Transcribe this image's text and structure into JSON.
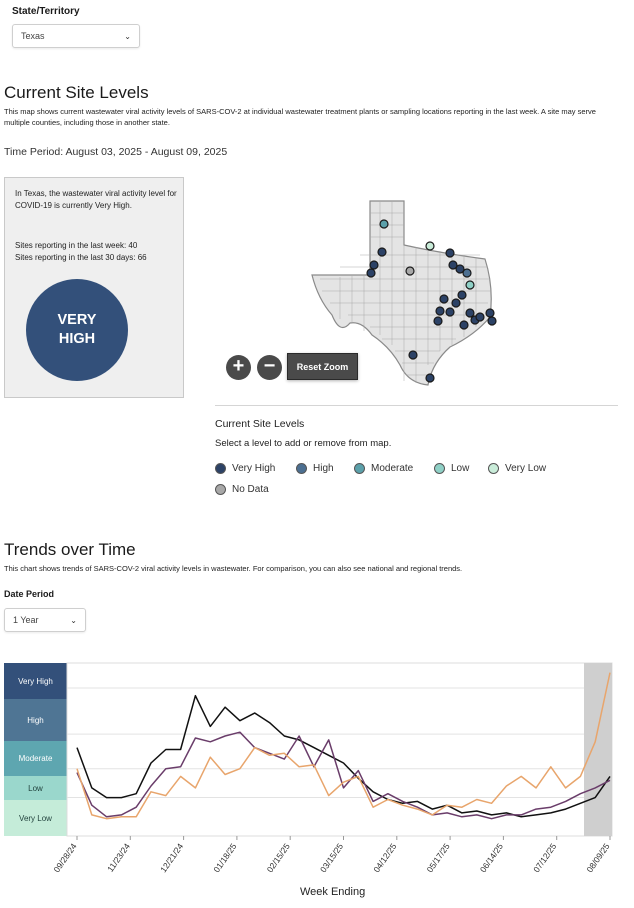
{
  "filter": {
    "label": "State/Territory",
    "selected": "Texas"
  },
  "site_levels": {
    "title": "Current Site Levels",
    "description": "This map shows current wastewater viral activity levels of SARS-COV-2 at individual wastewater treatment plants or sampling locations reporting in the last week. A site may serve multiple counties, including those in another state.",
    "time_period": "Time Period: August 03, 2025 - August 09, 2025"
  },
  "summary": {
    "text": "In Texas, the wastewater viral activity level for COVID-19 is currently Very High.",
    "sites_week": "Sites reporting in the last week: 40",
    "sites_30": "Sites reporting in the last 30 days: 66",
    "level_line1": "VERY",
    "level_line2": "HIGH",
    "level_color": "#33507a"
  },
  "map_controls": {
    "zoom_in": "+",
    "zoom_out": "−",
    "reset": "Reset Zoom"
  },
  "legend": {
    "title": "Current Site Levels",
    "subtitle": "Select a level to add or remove from map.",
    "items": [
      {
        "label": "Very High",
        "color": "#2c4266"
      },
      {
        "label": "High",
        "color": "#4c6f91"
      },
      {
        "label": "Moderate",
        "color": "#5ba0aa"
      },
      {
        "label": "Low",
        "color": "#8fd0c6"
      },
      {
        "label": "Very Low",
        "color": "#c9ecd9"
      },
      {
        "label": "No Data",
        "color": "#a8a8a8"
      }
    ]
  },
  "trends": {
    "title": "Trends over Time",
    "description": "This chart shows trends of SARS-COV-2 viral activity levels in wastewater. For comparison, you can also see national and regional trends.",
    "date_period_label": "Date Period",
    "date_period_value": "1 Year"
  },
  "chart_data": {
    "type": "line",
    "xlabel": "Week Ending",
    "x_ticks": [
      "09/28/24",
      "11/23/24",
      "12/21/24",
      "01/18/25",
      "02/15/25",
      "03/15/25",
      "04/12/25",
      "05/17/25",
      "06/14/25",
      "07/12/25",
      "08/09/25"
    ],
    "levels": [
      {
        "label": "Very High",
        "color": "#33507a"
      },
      {
        "label": "High",
        "color": "#4f7594"
      },
      {
        "label": "Moderate",
        "color": "#5ea6b0"
      },
      {
        "label": "Low",
        "color": "#9ad7cc"
      },
      {
        "label": "Very Low",
        "color": "#c5ecd9"
      }
    ],
    "series": [
      {
        "color": "#111111",
        "values": [
          2.3,
          1.25,
          1.0,
          1.0,
          1.1,
          1.9,
          2.25,
          2.25,
          3.65,
          2.85,
          3.35,
          3.0,
          3.2,
          2.95,
          2.6,
          2.5,
          2.3,
          2.1,
          1.9,
          1.5,
          1.15,
          0.95,
          0.85,
          0.9,
          0.7,
          0.8,
          0.6,
          0.65,
          0.55,
          0.6,
          0.5,
          0.55,
          0.6,
          0.7,
          0.85,
          1.0,
          1.55
        ]
      },
      {
        "color": "#6a3d6a",
        "values": [
          1.65,
          0.8,
          0.5,
          0.55,
          0.75,
          1.3,
          1.75,
          1.8,
          2.55,
          2.45,
          2.6,
          2.7,
          2.3,
          2.15,
          2.0,
          2.6,
          1.8,
          2.5,
          1.25,
          1.7,
          0.9,
          1.1,
          0.9,
          0.75,
          0.55,
          0.6,
          0.5,
          0.55,
          0.45,
          0.55,
          0.55,
          0.7,
          0.75,
          0.9,
          1.1,
          1.25,
          1.45
        ]
      },
      {
        "color": "#e8a56c",
        "values": [
          1.75,
          0.55,
          0.45,
          0.5,
          0.5,
          1.15,
          1.05,
          1.55,
          1.25,
          2.05,
          1.6,
          1.75,
          2.3,
          2.1,
          2.15,
          1.8,
          1.85,
          1.05,
          1.4,
          1.55,
          0.75,
          0.95,
          0.8,
          0.7,
          0.55,
          0.8,
          0.75,
          0.95,
          0.85,
          1.3,
          1.55,
          1.25,
          1.8,
          1.25,
          1.55,
          2.45,
          4.25
        ]
      }
    ],
    "highlight_last_week": true
  }
}
